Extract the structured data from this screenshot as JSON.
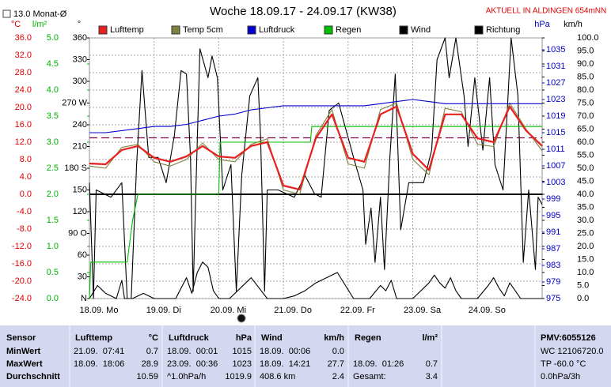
{
  "chart_data": {
    "type": "line",
    "title": "Woche 18.09.17 - 24.09.17 (KW38)",
    "annotation": "AKTUELL IN ALDINGEN 654mNN",
    "monthly_avg": {
      "value": 13.0,
      "label": "13.0 Monat-Ø"
    },
    "legend": "top",
    "zero_line": true,
    "xlim": [
      0,
      168
    ],
    "xticks": [
      {
        "value": 0,
        "label": "18.09. Mo"
      },
      {
        "value": 24,
        "label": "19.09. Di"
      },
      {
        "value": 48,
        "label": "20.09. Mi"
      },
      {
        "value": 72,
        "label": "21.09. Do"
      },
      {
        "value": 96,
        "label": "22.09. Fr"
      },
      {
        "value": 120,
        "label": "23.09. Sa"
      },
      {
        "value": 144,
        "label": "24.09. So"
      }
    ],
    "y_axes": [
      {
        "unit": "°C",
        "color": "#e00000",
        "side": "left",
        "grid": true,
        "ylim": [
          -24,
          36
        ],
        "yticks": [
          {
            "value": 36,
            "label": "36.0"
          },
          {
            "value": 32,
            "label": "32.0"
          },
          {
            "value": 28,
            "label": "28.0"
          },
          {
            "value": 24,
            "label": "24.0"
          },
          {
            "value": 20,
            "label": "20.0"
          },
          {
            "value": 16,
            "label": "16.0"
          },
          {
            "value": 12,
            "label": "12.0"
          },
          {
            "value": 8,
            "label": "8.0"
          },
          {
            "value": 4,
            "label": "4.0"
          },
          {
            "value": 0,
            "label": "0.0"
          },
          {
            "value": -4,
            "label": "-4.0"
          },
          {
            "value": -8,
            "label": "-8.0"
          },
          {
            "value": -12,
            "label": "-12.0"
          },
          {
            "value": -16,
            "label": "-16.0"
          },
          {
            "value": -20,
            "label": "-20.0"
          },
          {
            "value": -24,
            "label": "-24.0"
          }
        ]
      },
      {
        "unit": "l/m²",
        "color": "#00b000",
        "side": "left",
        "ylim": [
          0,
          5
        ],
        "yticks": [
          {
            "value": 5,
            "label": "5.0"
          },
          {
            "value": 4.5,
            "label": "4.5"
          },
          {
            "value": 4,
            "label": "4.0"
          },
          {
            "value": 3.5,
            "label": "3.5"
          },
          {
            "value": 3,
            "label": "3.0"
          },
          {
            "value": 2.5,
            "label": "2.5"
          },
          {
            "value": 2,
            "label": "2.0"
          },
          {
            "value": 1.5,
            "label": "1.5"
          },
          {
            "value": 1,
            "label": "1.0"
          },
          {
            "value": 0.5,
            "label": "0.5"
          },
          {
            "value": 0,
            "label": "0.0"
          }
        ]
      },
      {
        "unit": "°",
        "color": "#000000",
        "side": "left",
        "ylim": [
          0,
          360
        ],
        "yticks": [
          360,
          330,
          300,
          {
            "value": 270,
            "label": "270 W"
          },
          240,
          210,
          {
            "value": 180,
            "label": "180 S"
          },
          150,
          120,
          {
            "value": 90,
            "label": "90 O"
          },
          60,
          30,
          {
            "value": 0,
            "label": "N"
          }
        ]
      },
      {
        "unit": "hPa",
        "color": "#0000c0",
        "side": "right",
        "ylim": [
          975,
          1037.86
        ],
        "yticks": [
          1035,
          1031,
          1027,
          1023,
          1019,
          1015,
          1011,
          1007,
          1003,
          999,
          995,
          991,
          987,
          983,
          979,
          975
        ]
      },
      {
        "unit": "km/h",
        "color": "#000000",
        "side": "right",
        "ylim": [
          0,
          100
        ],
        "yticks": [
          {
            "value": 100,
            "label": "100.0"
          },
          {
            "value": 95,
            "label": "95.0"
          },
          {
            "value": 90,
            "label": "90.0"
          },
          {
            "value": 85,
            "label": "85.0"
          },
          {
            "value": 80,
            "label": "80.0"
          },
          {
            "value": 75,
            "label": "75.0"
          },
          {
            "value": 70,
            "label": "70.0"
          },
          {
            "value": 65,
            "label": "65.0"
          },
          {
            "value": 60,
            "label": "60.0"
          },
          {
            "value": 55,
            "label": "55.0"
          },
          {
            "value": 50,
            "label": "50.0"
          },
          {
            "value": 45,
            "label": "45.0"
          },
          {
            "value": 40,
            "label": "40.0"
          },
          {
            "value": 35,
            "label": "35.0"
          },
          {
            "value": 30,
            "label": "30.0"
          },
          {
            "value": 25,
            "label": "25.0"
          },
          {
            "value": 20,
            "label": "20.0"
          },
          {
            "value": 15,
            "label": "15.0"
          },
          {
            "value": 10,
            "label": "10.0"
          },
          {
            "value": 5,
            "label": "5.0"
          },
          {
            "value": 0,
            "label": "0.0"
          }
        ]
      }
    ],
    "series": [
      {
        "name": "Lufttemp",
        "color": "#e82020",
        "axis": 0,
        "x": [
          0,
          6,
          12,
          18,
          24,
          30,
          36,
          42,
          48,
          54,
          60,
          66,
          72,
          78,
          84,
          90,
          96,
          102,
          108,
          114,
          120,
          126,
          132,
          138,
          144,
          150,
          156,
          162,
          168
        ],
        "values": [
          7.1,
          6.9,
          10.2,
          11.1,
          8.4,
          7.5,
          8.7,
          11.1,
          8.7,
          8.4,
          11.1,
          12.0,
          2.0,
          1.1,
          12.9,
          18.4,
          8.4,
          7.5,
          18.4,
          20.2,
          9.3,
          5.6,
          18.4,
          18.4,
          12.9,
          12.0,
          20.2,
          14.7,
          11.1
        ]
      },
      {
        "name": "Temp 5cm",
        "color": "#808040",
        "axis": 0,
        "x": [
          0,
          6,
          12,
          18,
          24,
          30,
          36,
          42,
          48,
          54,
          60,
          66,
          72,
          78,
          84,
          90,
          96,
          102,
          108,
          114,
          120,
          126,
          132,
          138,
          144,
          150,
          156,
          162,
          168
        ],
        "values": [
          6.5,
          6.0,
          10.8,
          11.5,
          7.5,
          6.5,
          8.0,
          11.8,
          8.0,
          7.5,
          11.5,
          12.8,
          1.0,
          0.0,
          13.5,
          19.5,
          7.0,
          6.0,
          19.5,
          21.0,
          8.0,
          4.5,
          19.8,
          19.0,
          11.5,
          11.0,
          21.0,
          15.0,
          10.0
        ]
      },
      {
        "name": "Luftdruck",
        "color": "#0000d0",
        "axis": 3,
        "x": [
          0,
          6,
          12,
          18,
          24,
          30,
          36,
          42,
          48,
          54,
          60,
          66,
          72,
          78,
          84,
          90,
          96,
          102,
          108,
          114,
          120,
          126,
          132,
          138,
          144,
          150,
          156,
          162,
          168
        ],
        "values": [
          1015,
          1015,
          1015.5,
          1016,
          1016.5,
          1016.5,
          1017,
          1018,
          1019,
          1019.5,
          1020.5,
          1021,
          1021.5,
          1021.5,
          1021.5,
          1021.5,
          1021.5,
          1021.5,
          1022,
          1022.5,
          1023,
          1022.5,
          1022,
          1022,
          1022,
          1022,
          1022,
          1022,
          1022
        ]
      },
      {
        "name": "Regen",
        "color": "#00c000",
        "axis": 1,
        "x": [
          0,
          0.5,
          14,
          16,
          18,
          48,
          48.5,
          82,
          82.5,
          168
        ],
        "values": [
          0,
          0.7,
          0.7,
          1.5,
          2.0,
          2.0,
          3.0,
          3.0,
          3.3,
          3.3
        ]
      },
      {
        "name": "Wind",
        "color": "#000000",
        "axis": 4,
        "x": [
          0,
          3,
          6,
          10,
          12,
          13,
          16,
          20,
          24,
          32,
          36,
          38,
          40,
          42,
          44,
          46,
          48,
          52,
          56,
          60,
          63,
          66,
          72,
          76,
          80,
          84,
          88,
          92,
          95,
          98,
          104,
          108,
          110,
          112,
          114,
          120,
          126,
          128,
          130,
          132,
          134,
          136,
          138,
          144,
          148,
          150,
          152,
          154,
          156,
          158,
          160,
          168
        ],
        "values": [
          0,
          5,
          2,
          0,
          7,
          0,
          0,
          2,
          0,
          0,
          8,
          2,
          10,
          14,
          12,
          3,
          0,
          0,
          4,
          8,
          4,
          0,
          0,
          1,
          3,
          6,
          8,
          10,
          5,
          0,
          0,
          5,
          3,
          7,
          0,
          0,
          6,
          9,
          6,
          4,
          8,
          3,
          0,
          0,
          5,
          8,
          4,
          1,
          6,
          3,
          0,
          0
        ]
      },
      {
        "name": "Richtung",
        "color": "#000000",
        "axis": 2,
        "x": [
          0,
          1.5,
          2.5,
          8,
          12,
          14,
          15.5,
          17.5,
          19.5,
          22,
          25.5,
          28.5,
          31.5,
          34,
          36,
          37.5,
          38.5,
          39.5,
          41,
          44,
          45.5,
          47.5,
          49.5,
          52.5,
          54.5,
          56.5,
          59.5,
          62.5,
          63.5,
          65,
          66,
          70,
          76,
          80,
          83.5,
          86,
          89,
          92.5,
          98,
          101.5,
          102.5,
          104.5,
          106,
          108,
          109.5,
          111.5,
          113.5,
          115.5,
          118.5,
          124,
          127,
          129,
          132,
          133.5,
          136,
          139,
          140.5,
          143,
          146,
          148.5,
          150.5,
          153.5,
          156.5,
          159,
          161,
          163,
          165.5,
          166.5,
          168
        ],
        "values": [
          160,
          0,
          150,
          140,
          160,
          0,
          0,
          185,
          315,
          195,
          195,
          160,
          225,
          315,
          310,
          195,
          10,
          150,
          345,
          305,
          335,
          305,
          150,
          185,
          10,
          170,
          280,
          305,
          225,
          10,
          150,
          150,
          140,
          170,
          145,
          140,
          260,
          270,
          195,
          150,
          75,
          125,
          50,
          140,
          40,
          195,
          310,
          95,
          160,
          160,
          205,
          330,
          360,
          305,
          360,
          280,
          210,
          305,
          205,
          305,
          185,
          150,
          360,
          280,
          50,
          150,
          40,
          140,
          130
        ]
      }
    ]
  },
  "stats_table": {
    "labels": [
      "Sensor",
      "MinWert",
      "MaxWert",
      "Durchschnitt"
    ],
    "groups": [
      {
        "name": "Lufttemp",
        "unit": "°C",
        "rows": [
          [
            "21.09.  07:41",
            "0.7"
          ],
          [
            "18.09.  18:06",
            "28.9"
          ],
          [
            null,
            "10.59"
          ]
        ]
      },
      {
        "name": "Luftdruck",
        "unit": "hPa",
        "rows": [
          [
            "18.09.  00:01",
            "1015"
          ],
          [
            "23.09.  00:36",
            "1023"
          ],
          [
            "^1.0hPa/h",
            "1019.9"
          ]
        ]
      },
      {
        "name": "Wind",
        "unit": "km/h",
        "rows": [
          [
            "18.09.  00:06",
            "0.0"
          ],
          [
            "18.09.  14:21",
            "27.7"
          ],
          [
            "408.6 km",
            "2.4"
          ]
        ]
      },
      {
        "name": "Regen",
        "unit": "l/m²",
        "rows": [
          [
            null,
            null
          ],
          [
            "18.09.  01:26",
            "0.7"
          ],
          [
            "Gesamt:",
            "3.4"
          ]
        ]
      }
    ],
    "info": [
      "PMV:6055126",
      "WC 12106720.0",
      "TP -60.0 °C",
      "0.0hPa/3h"
    ]
  }
}
